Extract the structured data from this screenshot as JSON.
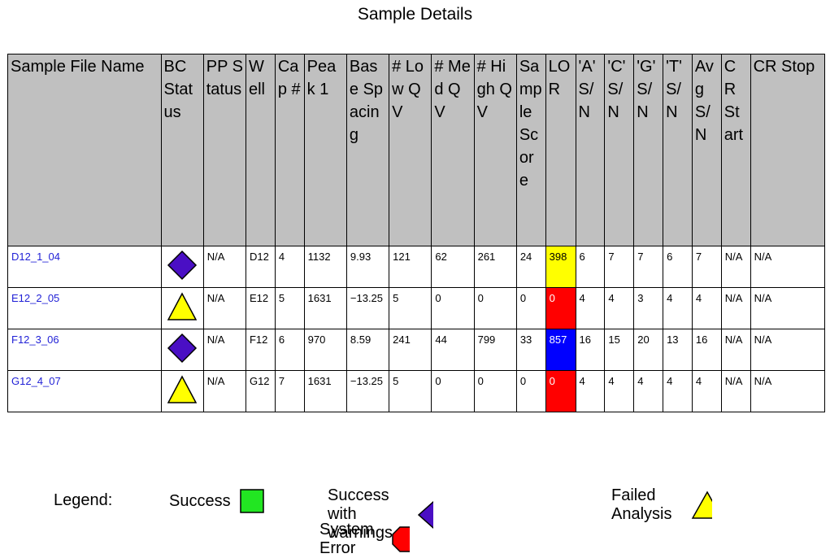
{
  "title": "Sample Details",
  "columns": [
    "Sample File Name",
    "BC Status",
    "PP Status",
    "Well",
    "Cap #",
    "Peak 1",
    "Base Spacing",
    "# Low QV",
    "# Med QV",
    "# High QV",
    "Sample Score",
    "LOR",
    "'A' S/N",
    "'C' S/N",
    "'G' S/N",
    "'T' S/N",
    "Avg S/N",
    "CR Start",
    "CR Stop"
  ],
  "rows": [
    {
      "file": "D12_1_04",
      "bc_status": "success-with-warnings",
      "pp": "N/A",
      "well": "D12",
      "cap": "4",
      "peak1": "1132",
      "base_spacing": "9.93",
      "low_qv": "121",
      "med_qv": "62",
      "high_qv": "261",
      "score": "24",
      "lor": "398",
      "lor_color": "#ffff00",
      "a_sn": "6",
      "c_sn": "7",
      "g_sn": "7",
      "t_sn": "6",
      "avg_sn": "7",
      "cr_start": "N/A",
      "cr_stop": "N/A"
    },
    {
      "file": "E12_2_05",
      "bc_status": "failed-analysis",
      "pp": "N/A",
      "well": "E12",
      "cap": "5",
      "peak1": "1631",
      "base_spacing": "−13.25",
      "low_qv": "5",
      "med_qv": "0",
      "high_qv": "0",
      "score": "0",
      "lor": "0",
      "lor_color": "#ff0000",
      "a_sn": "4",
      "c_sn": "4",
      "g_sn": "3",
      "t_sn": "4",
      "avg_sn": "4",
      "cr_start": "N/A",
      "cr_stop": "N/A"
    },
    {
      "file": "F12_3_06",
      "bc_status": "success-with-warnings",
      "pp": "N/A",
      "well": "F12",
      "cap": "6",
      "peak1": "970",
      "base_spacing": "8.59",
      "low_qv": "241",
      "med_qv": "44",
      "high_qv": "799",
      "score": "33",
      "lor": "857",
      "lor_color": "#0000ff",
      "a_sn": "16",
      "c_sn": "15",
      "g_sn": "20",
      "t_sn": "13",
      "avg_sn": "16",
      "cr_start": "N/A",
      "cr_stop": "N/A"
    },
    {
      "file": "G12_4_07",
      "bc_status": "failed-analysis",
      "pp": "N/A",
      "well": "G12",
      "cap": "7",
      "peak1": "1631",
      "base_spacing": "−13.25",
      "low_qv": "5",
      "med_qv": "0",
      "high_qv": "0",
      "score": "0",
      "lor": "0",
      "lor_color": "#ff0000",
      "a_sn": "4",
      "c_sn": "4",
      "g_sn": "4",
      "t_sn": "4",
      "avg_sn": "4",
      "cr_start": "N/A",
      "cr_stop": "N/A"
    }
  ],
  "legend": {
    "label": "Legend:",
    "success": "Success",
    "success_warnings": "Success with warnings",
    "failed": "Failed Analysis",
    "system_error": "System Error"
  },
  "colors": {
    "success": "#22e622",
    "success_warnings": "#4a0fc4",
    "failed": "#ffff00",
    "system_error": "#ff0000",
    "header_bg": "#c0c0c0",
    "link": "#1f1fd6"
  }
}
